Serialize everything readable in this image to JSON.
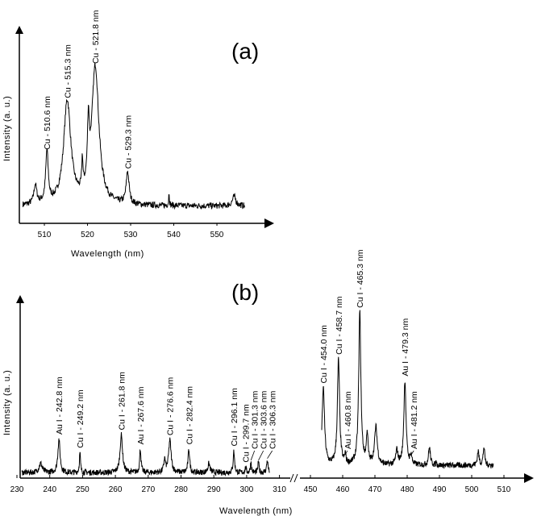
{
  "chart_data": [
    {
      "type": "line",
      "panel_label": "(a)",
      "xlabel": "Wavelength (nm)",
      "ylabel": "Intensity (a. u.)",
      "xlim": [
        504.2,
        561
      ],
      "ylim": [
        0,
        100
      ],
      "xticks": [
        510,
        520,
        530,
        540,
        550
      ],
      "grid": false,
      "series_range": [
        505,
        556.5
      ],
      "baseline": 9,
      "peaks": [
        {
          "x": 510.6,
          "y": 36,
          "width": 0.35,
          "label": "Cu - 510.6 nm"
        },
        {
          "x": 515.3,
          "y": 63,
          "width": 1.0,
          "label": "Cu - 515.3 nm"
        },
        {
          "x": 521.8,
          "y": 81,
          "width": 1.0,
          "label": "Cu - 521.8 nm"
        },
        {
          "x": 529.3,
          "y": 26,
          "width": 0.4,
          "label": "Cu - 529.3 nm"
        }
      ],
      "unlabeled_peaks": [
        {
          "x": 507.9,
          "y": 19,
          "width": 0.4
        },
        {
          "x": 518.8,
          "y": 25,
          "width": 0.15
        },
        {
          "x": 520.2,
          "y": 40,
          "width": 0.25
        },
        {
          "x": 538.9,
          "y": 16,
          "width": 0.1
        },
        {
          "x": 554.0,
          "y": 14,
          "width": 0.5
        }
      ]
    },
    {
      "type": "line",
      "panel_label": "(b)",
      "xlabel": "Wavelength (nm)",
      "ylabel": "Intensity (a. u.)",
      "axis_break": [
        312,
        448
      ],
      "xlim_left": [
        231,
        313
      ],
      "xlim_right": [
        446,
        518
      ],
      "ylim": [
        0,
        100
      ],
      "xticks_left": [
        230,
        240,
        250,
        260,
        270,
        280,
        290,
        300,
        310
      ],
      "xticks_right": [
        450,
        460,
        470,
        480,
        490,
        500,
        510
      ],
      "grid": false,
      "series_ranges": [
        [
          231.5,
          307
        ],
        [
          453.5,
          506.7
        ]
      ],
      "baseline_left": 3,
      "baseline_right": 7,
      "peaks": [
        {
          "x": 242.8,
          "y": 21.5,
          "width": 0.4,
          "label": "Au I - 242.8 nm"
        },
        {
          "x": 249.2,
          "y": 14,
          "width": 0.2,
          "label": "Cu I - 249.2 nm"
        },
        {
          "x": 261.8,
          "y": 24,
          "width": 0.45,
          "label": "Cu I - 261.8 nm"
        },
        {
          "x": 267.6,
          "y": 16,
          "width": 0.25,
          "label": "Au I - 267.6 nm"
        },
        {
          "x": 276.6,
          "y": 21,
          "width": 0.45,
          "label": "Cu I - 276.6 nm"
        },
        {
          "x": 282.4,
          "y": 16,
          "width": 0.3,
          "label": "Cu I - 282.4 nm"
        },
        {
          "x": 296.1,
          "y": 15,
          "width": 0.25,
          "label": "Cu I - 296.1 nm"
        },
        {
          "x": 299.7,
          "y": 6,
          "width": 0.2,
          "label": "Cu I - 299.7 nm"
        },
        {
          "x": 301.3,
          "y": 9,
          "width": 0.2,
          "label": "Cu I - 301.3 nm"
        },
        {
          "x": 303.6,
          "y": 9,
          "width": 0.2,
          "label": "Cu I - 303.6 nm"
        },
        {
          "x": 306.3,
          "y": 10,
          "width": 0.25,
          "label": "Cu I - 306.3 nm"
        },
        {
          "x": 454.0,
          "y": 50,
          "width": 0.45,
          "label": "Cu I - 454.0 nm"
        },
        {
          "x": 458.7,
          "y": 66,
          "width": 0.4,
          "label": "Cu I - 458.7 nm"
        },
        {
          "x": 460.8,
          "y": 12,
          "width": 0.2,
          "label": "Au I - 460.8 nm"
        },
        {
          "x": 465.3,
          "y": 92,
          "width": 0.4,
          "label": "Cu I - 465.3 nm"
        },
        {
          "x": 479.3,
          "y": 54,
          "width": 0.4,
          "label": "Au I - 479.3 nm"
        },
        {
          "x": 481.2,
          "y": 12,
          "width": 0.3,
          "label": "Au I - 481.2 nm"
        }
      ],
      "unlabeled_peaks": [
        {
          "x": 237.2,
          "y": 8,
          "width": 0.6
        },
        {
          "x": 275.0,
          "y": 10,
          "width": 0.3
        },
        {
          "x": 288.5,
          "y": 8,
          "width": 0.4
        },
        {
          "x": 467.6,
          "y": 24,
          "width": 0.3
        },
        {
          "x": 470.3,
          "y": 28,
          "width": 0.5
        },
        {
          "x": 476.8,
          "y": 15,
          "width": 0.4
        },
        {
          "x": 486.9,
          "y": 17,
          "width": 0.35
        },
        {
          "x": 489.0,
          "y": 10,
          "width": 0.1
        },
        {
          "x": 502.0,
          "y": 15,
          "width": 0.3
        },
        {
          "x": 503.8,
          "y": 17,
          "width": 0.3
        }
      ]
    }
  ]
}
